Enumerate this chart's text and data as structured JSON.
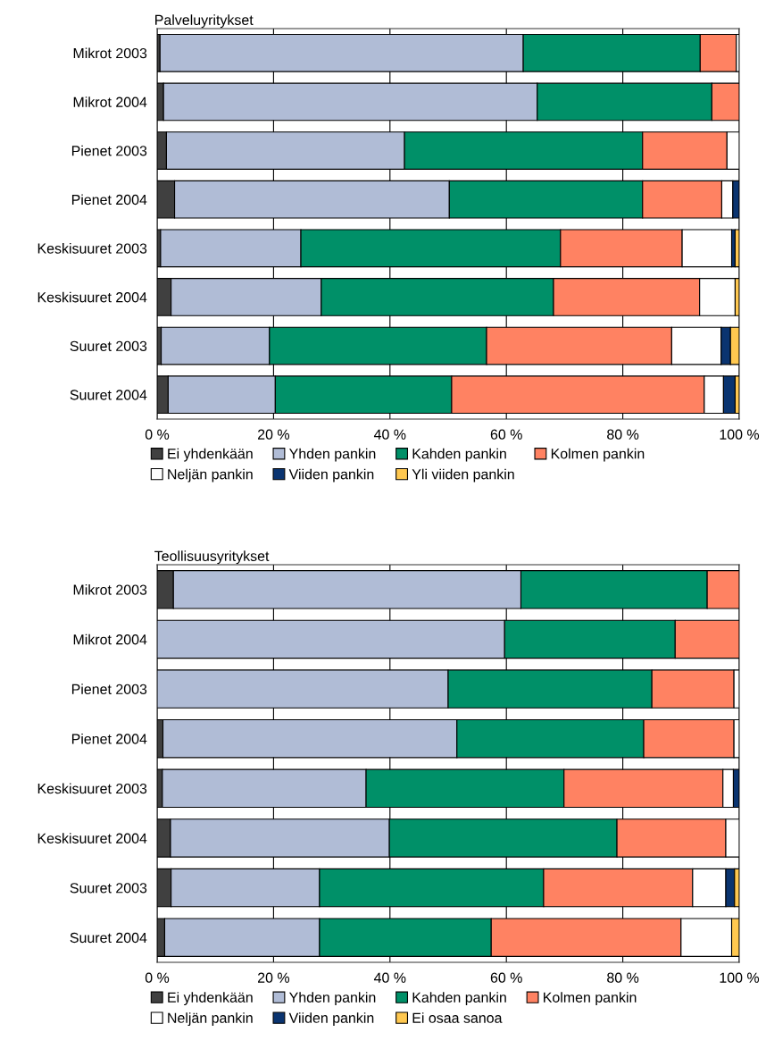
{
  "chart_data": [
    {
      "type": "bar",
      "title": "Palveluyritykset",
      "orientation": "horizontal",
      "stacked": true,
      "grid": "x",
      "legend": "bottom",
      "xlim": [
        0,
        100
      ],
      "xticks": [
        {
          "value": 0,
          "label": "0 %"
        },
        {
          "value": 20,
          "label": "20 %"
        },
        {
          "value": 40,
          "label": "40 %"
        },
        {
          "value": 60,
          "label": "60 %"
        },
        {
          "value": 80,
          "label": "80 %"
        },
        {
          "value": 100,
          "label": "100 %"
        }
      ],
      "categories": [
        "Mikrot 2003",
        "Mikrot 2004",
        "Pienet 2003",
        "Pienet 2004",
        "Keskisuuret 2003",
        "Keskisuuret 2004",
        "Suuret 2003",
        "Suuret 2004"
      ],
      "series": [
        {
          "name": "Ei yhdenkään",
          "color": "#404040",
          "values": [
            0.5,
            1.1,
            1.6,
            3.0,
            0.6,
            2.4,
            0.7,
            1.9
          ]
        },
        {
          "name": "Yhden pankin",
          "color": "#b0bcd6",
          "values": [
            62.4,
            64.2,
            40.9,
            47.2,
            24.1,
            25.8,
            18.6,
            18.4
          ]
        },
        {
          "name": "Kahden pankin",
          "color": "#009068",
          "values": [
            30.4,
            30.0,
            40.9,
            33.2,
            44.6,
            39.9,
            37.3,
            30.3
          ]
        },
        {
          "name": "Kolmen pankin",
          "color": "#ff8262",
          "values": [
            6.2,
            4.7,
            14.5,
            13.6,
            20.9,
            25.1,
            31.8,
            43.4
          ]
        },
        {
          "name": "Neljän pankin",
          "color": "#ffffff",
          "values": [
            0.5,
            0,
            2.1,
            1.9,
            8.5,
            6.1,
            8.5,
            3.3
          ]
        },
        {
          "name": "Viiden pankin",
          "color": "#0a3470",
          "values": [
            0,
            0,
            0,
            1.1,
            0.6,
            0,
            1.6,
            2.0
          ]
        },
        {
          "name": "Yli viiden pankin",
          "color": "#ffc850",
          "values": [
            0,
            0,
            0,
            0,
            0.7,
            0.7,
            1.5,
            0.7
          ]
        }
      ]
    },
    {
      "type": "bar",
      "title": "Teollisuusyritykset",
      "orientation": "horizontal",
      "stacked": true,
      "grid": "x",
      "legend": "bottom",
      "xlim": [
        0,
        100
      ],
      "xticks": [
        {
          "value": 0,
          "label": "0 %"
        },
        {
          "value": 20,
          "label": "20 %"
        },
        {
          "value": 40,
          "label": "40 %"
        },
        {
          "value": 60,
          "label": "60 %"
        },
        {
          "value": 80,
          "label": "80 %"
        },
        {
          "value": 100,
          "label": "100 %"
        }
      ],
      "categories": [
        "Mikrot 2003",
        "Mikrot 2004",
        "Pienet 2003",
        "Pienet 2004",
        "Keskisuuret 2003",
        "Keskisuuret 2004",
        "Suuret 2003",
        "Suuret 2004"
      ],
      "series": [
        {
          "name": "Ei yhdenkään",
          "color": "#404040",
          "values": [
            2.8,
            0,
            0,
            1.0,
            0.9,
            2.3,
            2.4,
            1.3
          ]
        },
        {
          "name": "Yhden pankin",
          "color": "#b0bcd6",
          "values": [
            59.7,
            59.7,
            50.0,
            50.5,
            35.0,
            37.6,
            25.5,
            26.6
          ]
        },
        {
          "name": "Kahden pankin",
          "color": "#009068",
          "values": [
            32.0,
            29.3,
            35.0,
            32.1,
            34.0,
            39.1,
            38.5,
            29.5
          ]
        },
        {
          "name": "Kolmen pankin",
          "color": "#ff8262",
          "values": [
            5.5,
            11.0,
            14.1,
            15.5,
            27.3,
            18.7,
            25.6,
            32.6
          ]
        },
        {
          "name": "Neljän pankin",
          "color": "#ffffff",
          "values": [
            0,
            0,
            0.9,
            0.9,
            1.8,
            2.3,
            5.7,
            8.7
          ]
        },
        {
          "name": "Viiden pankin",
          "color": "#0a3470",
          "values": [
            0,
            0,
            0,
            0,
            1.0,
            0,
            1.5,
            0
          ]
        },
        {
          "name": "Ei osaa sanoa",
          "color": "#ffc850",
          "values": [
            0,
            0,
            0,
            0,
            0,
            0,
            0.8,
            1.3
          ]
        }
      ]
    }
  ]
}
